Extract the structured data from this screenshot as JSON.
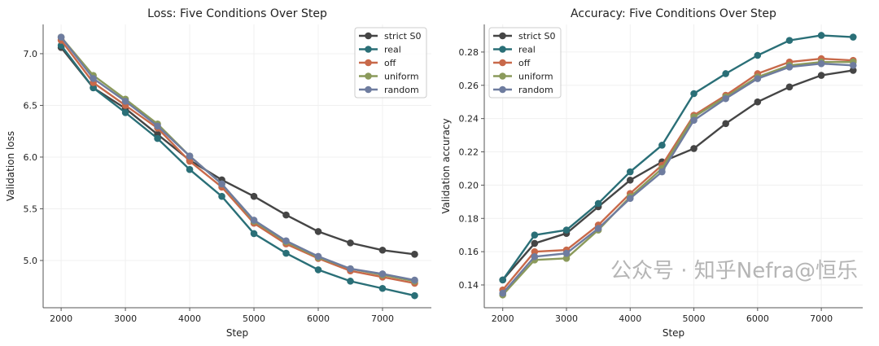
{
  "colors": {
    "strict S0": "#454545",
    "real": "#2a6f77",
    "off": "#c8694a",
    "uniform": "#8b9a5b",
    "random": "#6e7c9f"
  },
  "watermark": "公众号 · 知乎Nefra@恒乐",
  "chart_data": [
    {
      "type": "line",
      "title": "Loss: Five Conditions Over Step",
      "xlabel": "Step",
      "ylabel": "Validation loss",
      "x": [
        2000,
        2500,
        3000,
        3500,
        4000,
        4500,
        5000,
        5500,
        6000,
        6500,
        7000,
        7500
      ],
      "xlim": [
        1720,
        7760
      ],
      "ylim": [
        4.543,
        7.283
      ],
      "xticks": [
        2000,
        3000,
        4000,
        5000,
        6000,
        7000
      ],
      "yticks": [
        5.0,
        5.5,
        6.0,
        6.5,
        7.0
      ],
      "ytick_labels": [
        "5.0",
        "5.5",
        "6.0",
        "6.5",
        "7.0"
      ],
      "grid": true,
      "legend": "top-right",
      "series": [
        {
          "name": "strict S0",
          "values": [
            7.06,
            6.67,
            6.47,
            6.22,
            5.97,
            5.78,
            5.62,
            5.44,
            5.28,
            5.17,
            5.1,
            5.06
          ]
        },
        {
          "name": "real",
          "values": [
            7.08,
            6.67,
            6.43,
            6.18,
            5.88,
            5.62,
            5.26,
            5.07,
            4.91,
            4.8,
            4.73,
            4.66
          ]
        },
        {
          "name": "off",
          "values": [
            7.13,
            6.72,
            6.5,
            6.28,
            5.96,
            5.71,
            5.36,
            5.16,
            5.02,
            4.9,
            4.84,
            4.78
          ]
        },
        {
          "name": "uniform",
          "values": [
            7.16,
            6.79,
            6.56,
            6.32,
            6.01,
            5.74,
            5.38,
            5.18,
            5.03,
            4.92,
            4.86,
            4.8
          ]
        },
        {
          "name": "random",
          "values": [
            7.16,
            6.76,
            6.54,
            6.3,
            6.01,
            5.74,
            5.39,
            5.19,
            5.04,
            4.92,
            4.87,
            4.81
          ]
        }
      ]
    },
    {
      "type": "line",
      "title": "Accuracy: Five Conditions Over Step",
      "xlabel": "Step",
      "ylabel": "Validation accuracy",
      "x": [
        2000,
        2500,
        3000,
        3500,
        4000,
        4500,
        5000,
        5500,
        6000,
        6500,
        7000,
        7500
      ],
      "xlim": [
        1710,
        7650
      ],
      "ylim": [
        0.1263,
        0.2966
      ],
      "xticks": [
        2000,
        3000,
        4000,
        5000,
        6000,
        7000
      ],
      "yticks": [
        0.14,
        0.16,
        0.18,
        0.2,
        0.22,
        0.24,
        0.26,
        0.28
      ],
      "ytick_labels": [
        "0.14",
        "0.16",
        "0.18",
        "0.20",
        "0.22",
        "0.24",
        "0.26",
        "0.28"
      ],
      "grid": true,
      "legend": "top-left",
      "series": [
        {
          "name": "strict S0",
          "values": [
            0.143,
            0.165,
            0.171,
            0.187,
            0.203,
            0.214,
            0.222,
            0.237,
            0.25,
            0.259,
            0.266,
            0.269
          ]
        },
        {
          "name": "real",
          "values": [
            0.143,
            0.17,
            0.173,
            0.189,
            0.208,
            0.224,
            0.255,
            0.267,
            0.278,
            0.287,
            0.29,
            0.289
          ]
        },
        {
          "name": "off",
          "values": [
            0.137,
            0.16,
            0.161,
            0.176,
            0.195,
            0.212,
            0.242,
            0.254,
            0.267,
            0.274,
            0.276,
            0.275
          ]
        },
        {
          "name": "uniform",
          "values": [
            0.134,
            0.155,
            0.156,
            0.173,
            0.193,
            0.21,
            0.241,
            0.253,
            0.265,
            0.272,
            0.274,
            0.274
          ]
        },
        {
          "name": "random",
          "values": [
            0.135,
            0.157,
            0.159,
            0.174,
            0.192,
            0.208,
            0.239,
            0.252,
            0.264,
            0.271,
            0.273,
            0.272
          ]
        }
      ]
    }
  ]
}
